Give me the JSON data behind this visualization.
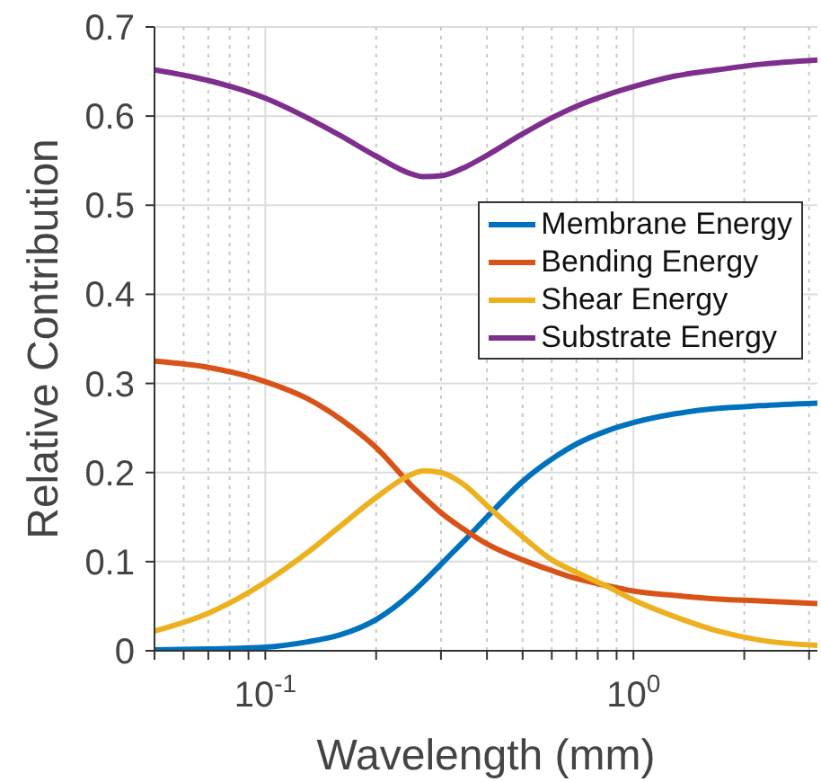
{
  "chart_data": {
    "type": "line",
    "xlabel": "Wavelength (mm)",
    "ylabel": "Relative Contribution",
    "log": "x",
    "grid": true,
    "legend": "right",
    "marker": "none",
    "line_style": "solid",
    "x": [
      0.05,
      0.07,
      0.1,
      0.13,
      0.16,
      0.2,
      0.25,
      0.27,
      0.3,
      0.35,
      0.4,
      0.5,
      0.6,
      0.7,
      0.85,
      1,
      1.3,
      1.7,
      2.2,
      3.16
    ],
    "xlim": [
      0.05,
      3.16
    ],
    "xticks": [
      {
        "value": 0.05,
        "label": null
      },
      {
        "value": 0.06,
        "label": null
      },
      {
        "value": 0.07,
        "label": null
      },
      {
        "value": 0.08,
        "label": null
      },
      {
        "value": 0.09,
        "label": null
      },
      {
        "value": 0.1,
        "label": "10$^{-1}$"
      },
      {
        "value": 0.2,
        "label": null
      },
      {
        "value": 0.3,
        "label": null
      },
      {
        "value": 0.4,
        "label": null
      },
      {
        "value": 0.5,
        "label": null
      },
      {
        "value": 0.6,
        "label": null
      },
      {
        "value": 0.7,
        "label": null
      },
      {
        "value": 0.8,
        "label": null
      },
      {
        "value": 0.9,
        "label": null
      },
      {
        "value": 1,
        "label": "10$^{0}$"
      },
      {
        "value": 2,
        "label": null
      },
      {
        "value": 3,
        "label": null
      }
    ],
    "ylim": [
      0,
      0.7
    ],
    "yticks": [
      0,
      0.1,
      0.2,
      0.3,
      0.4,
      0.5,
      0.6,
      0.7
    ],
    "series": [
      {
        "name": "Membrane Energy",
        "color": "#0072bd",
        "values": [
          0.001,
          0.002,
          0.004,
          0.01,
          0.018,
          0.035,
          0.065,
          0.078,
          0.097,
          0.125,
          0.15,
          0.19,
          0.215,
          0.232,
          0.247,
          0.256,
          0.266,
          0.272,
          0.275,
          0.278
        ]
      },
      {
        "name": "Bending Energy",
        "color": "#d95319",
        "values": [
          0.325,
          0.318,
          0.302,
          0.283,
          0.26,
          0.228,
          0.185,
          0.172,
          0.155,
          0.135,
          0.12,
          0.102,
          0.09,
          0.081,
          0.073,
          0.067,
          0.062,
          0.058,
          0.056,
          0.053
        ]
      },
      {
        "name": "Shear Energy",
        "color": "#edb120",
        "values": [
          0.022,
          0.042,
          0.077,
          0.11,
          0.14,
          0.172,
          0.198,
          0.202,
          0.2,
          0.185,
          0.163,
          0.128,
          0.102,
          0.088,
          0.072,
          0.057,
          0.038,
          0.022,
          0.012,
          0.006
        ]
      },
      {
        "name": "Substrate Energy",
        "color": "#7e2f8e",
        "values": [
          0.652,
          0.64,
          0.62,
          0.598,
          0.578,
          0.555,
          0.535,
          0.532,
          0.533,
          0.543,
          0.556,
          0.58,
          0.598,
          0.611,
          0.624,
          0.633,
          0.645,
          0.652,
          0.658,
          0.663
        ]
      }
    ]
  }
}
